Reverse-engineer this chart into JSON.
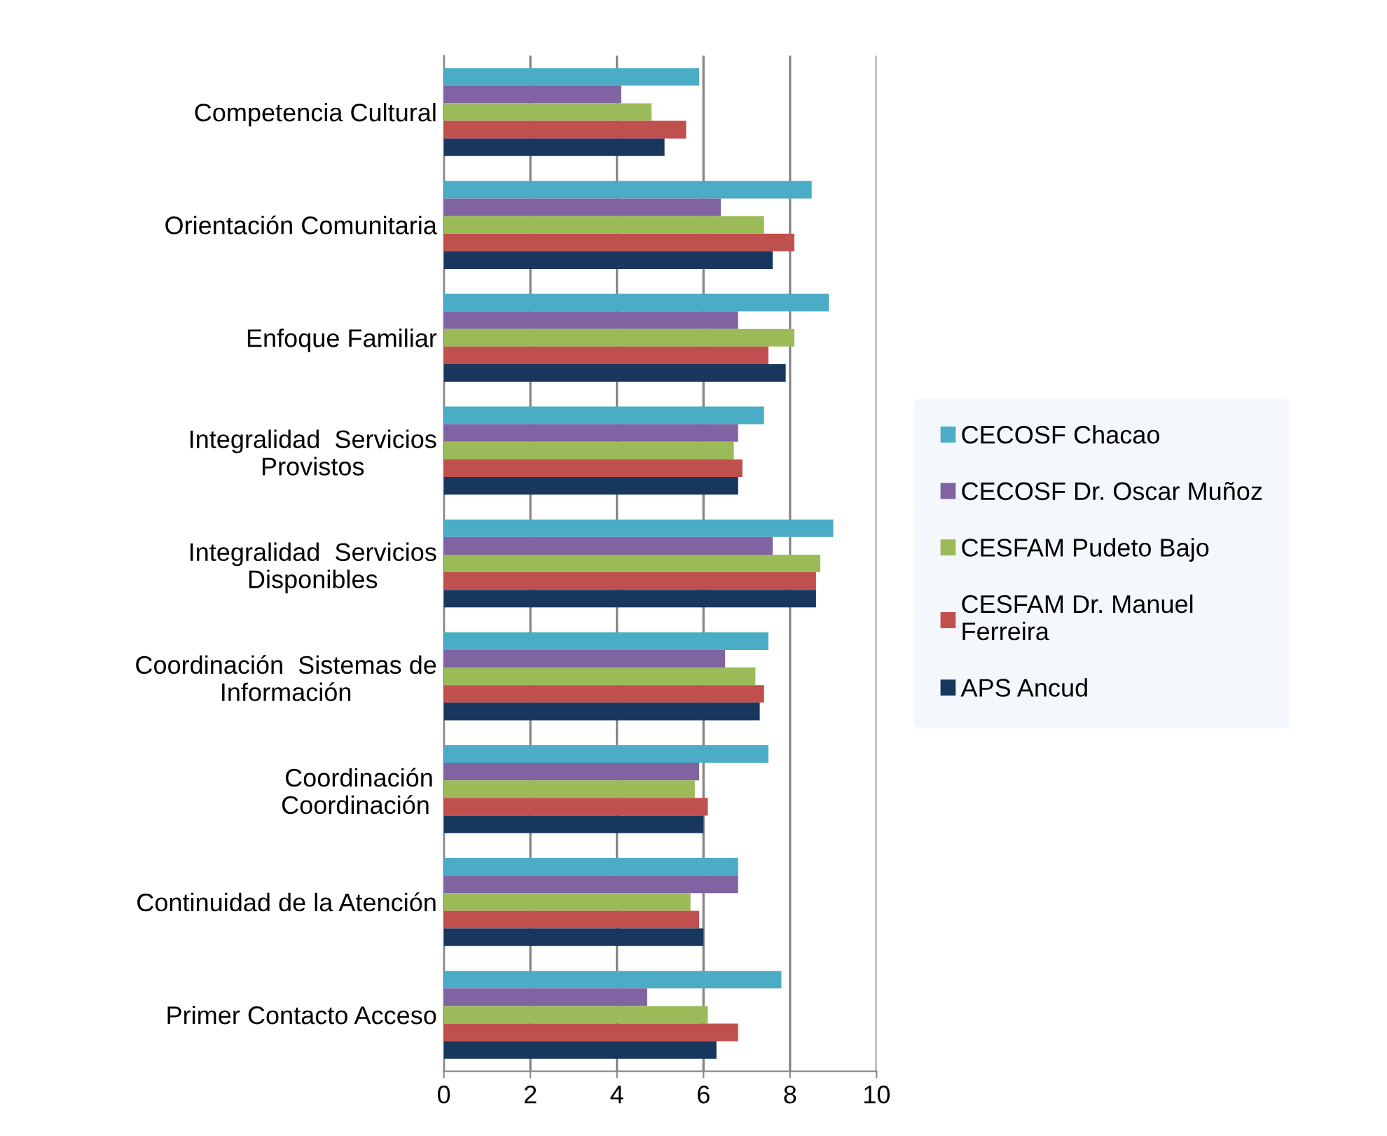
{
  "chart_data": {
    "type": "bar",
    "orientation": "horizontal",
    "categories": [
      "Competencia Cultural",
      "Orientación Comunitaria",
      "Enfoque Familiar",
      "Integralidad  Servicios\nProvistos",
      "Integralidad  Servicios\nDisponibles",
      "Coordinación  Sistemas de\nInformación",
      "Coordinación\nCoordinación ",
      "Continuidad de la Atención",
      "Primer Contacto Acceso"
    ],
    "series": [
      {
        "name": "CECOSF Chacao",
        "color": "#4bacc6",
        "values": [
          5.9,
          8.5,
          8.9,
          7.4,
          9.0,
          7.5,
          7.5,
          6.8,
          7.8
        ]
      },
      {
        "name": "CECOSF Dr. Oscar Muñoz",
        "color": "#8064a2",
        "values": [
          4.1,
          6.4,
          6.8,
          6.8,
          7.6,
          6.5,
          5.9,
          6.8,
          4.7
        ]
      },
      {
        "name": "CESFAM Pudeto Bajo",
        "color": "#9bbb59",
        "values": [
          4.8,
          7.4,
          8.1,
          6.7,
          8.7,
          7.2,
          5.8,
          5.7,
          6.1
        ]
      },
      {
        "name": "CESFAM Dr. Manuel\nFerreira",
        "color": "#c0504d",
        "values": [
          5.6,
          8.1,
          7.5,
          6.9,
          8.6,
          7.4,
          6.1,
          5.9,
          6.8
        ]
      },
      {
        "name": "APS Ancud",
        "color": "#17375e",
        "values": [
          5.1,
          7.6,
          7.9,
          6.8,
          8.6,
          7.3,
          6.0,
          6.0,
          6.3
        ]
      }
    ],
    "xlim": [
      0,
      10
    ],
    "xticks": [
      0,
      2,
      4,
      6,
      8,
      10
    ],
    "grid": "x",
    "legend": "right"
  }
}
